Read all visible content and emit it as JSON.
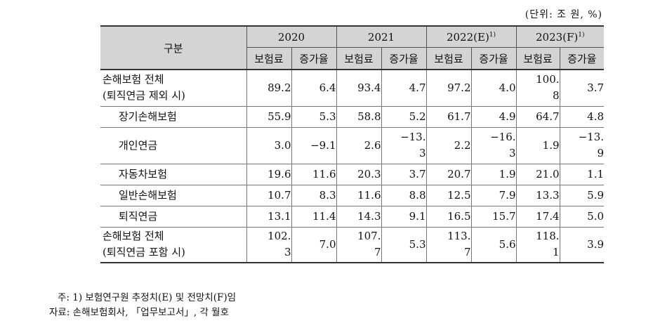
{
  "unit_label": "(단위: 조 원, %)",
  "header": {
    "gubun": "구분",
    "years": [
      {
        "label": "2020",
        "sup": ""
      },
      {
        "label": "2021",
        "sup": ""
      },
      {
        "label": "2022(E)",
        "sup": "1)"
      },
      {
        "label": "2023(F)",
        "sup": "1)"
      }
    ],
    "sub_premium": "보험료",
    "sub_growth": "증가율"
  },
  "rows": [
    {
      "label": [
        "손해보험 전체",
        "(퇴직연금 제외 시)"
      ],
      "indent": false,
      "cells": [
        [
          "89.2"
        ],
        [
          "6.4"
        ],
        [
          "93.4"
        ],
        [
          "4.7"
        ],
        [
          "97.2"
        ],
        [
          "4.0"
        ],
        [
          "100.",
          "8"
        ],
        [
          "3.7"
        ]
      ]
    },
    {
      "label": [
        "장기손해보험"
      ],
      "indent": true,
      "cells": [
        [
          "55.9"
        ],
        [
          "5.3"
        ],
        [
          "58.8"
        ],
        [
          "5.2"
        ],
        [
          "61.7"
        ],
        [
          "4.9"
        ],
        [
          "64.7"
        ],
        [
          "4.8"
        ]
      ]
    },
    {
      "label": [
        "개인연금"
      ],
      "indent": true,
      "cells": [
        [
          "3.0"
        ],
        [
          "−9.1"
        ],
        [
          "2.6"
        ],
        [
          "−13.",
          "3"
        ],
        [
          "2.2"
        ],
        [
          "−16.",
          "3"
        ],
        [
          "1.9"
        ],
        [
          "−13.",
          "9"
        ]
      ]
    },
    {
      "label": [
        "자동차보험"
      ],
      "indent": true,
      "cells": [
        [
          "19.6"
        ],
        [
          "11.6"
        ],
        [
          "20.3"
        ],
        [
          "3.7"
        ],
        [
          "20.7"
        ],
        [
          "1.9"
        ],
        [
          "21.0"
        ],
        [
          "1.1"
        ]
      ]
    },
    {
      "label": [
        "일반손해보험"
      ],
      "indent": true,
      "cells": [
        [
          "10.7"
        ],
        [
          "8.3"
        ],
        [
          "11.6"
        ],
        [
          "8.8"
        ],
        [
          "12.5"
        ],
        [
          "7.9"
        ],
        [
          "13.3"
        ],
        [
          "5.9"
        ]
      ]
    },
    {
      "label": [
        "퇴직연금"
      ],
      "indent": true,
      "cells": [
        [
          "13.1"
        ],
        [
          "11.4"
        ],
        [
          "14.3"
        ],
        [
          "9.1"
        ],
        [
          "16.5"
        ],
        [
          "15.7"
        ],
        [
          "17.4"
        ],
        [
          "5.0"
        ]
      ]
    },
    {
      "label": [
        "손해보험 전체",
        "(퇴직연금 포함 시)"
      ],
      "indent": false,
      "cells": [
        [
          "102.",
          "3"
        ],
        [
          "7.0"
        ],
        [
          "107.",
          "7"
        ],
        [
          "5.3"
        ],
        [
          "113.",
          "7"
        ],
        [
          "5.6"
        ],
        [
          "118.",
          "1"
        ],
        [
          "3.9"
        ]
      ]
    }
  ],
  "notes": {
    "note1": "주: 1) 보험연구원 추정치(E) 및 전망치(F)임",
    "source": "자료: 손해보험회사, 「업무보고서」, 각 월호"
  }
}
